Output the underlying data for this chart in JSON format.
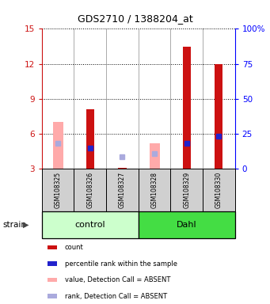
{
  "title": "GDS2710 / 1388204_at",
  "samples": [
    "GSM108325",
    "GSM108326",
    "GSM108327",
    "GSM108328",
    "GSM108329",
    "GSM108330"
  ],
  "groups": [
    "control",
    "control",
    "control",
    "Dahl",
    "Dahl",
    "Dahl"
  ],
  "ylim_left": [
    3,
    15
  ],
  "yticks_left": [
    3,
    6,
    9,
    12,
    15
  ],
  "ylim_right": [
    0,
    100
  ],
  "yticks_right": [
    0,
    25,
    50,
    75,
    100
  ],
  "ytick_labels_right": [
    "0",
    "25",
    "50",
    "75",
    "100%"
  ],
  "red_bars": {
    "GSM108325": null,
    "GSM108326": 8.1,
    "GSM108327": 3.1,
    "GSM108328": null,
    "GSM108329": 13.5,
    "GSM108330": 12.0
  },
  "pink_bars": {
    "GSM108325": 7.0,
    "GSM108326": null,
    "GSM108327": null,
    "GSM108328": 5.2,
    "GSM108329": null,
    "GSM108330": null
  },
  "blue_squares": {
    "GSM108325": null,
    "GSM108326": 4.8,
    "GSM108327": null,
    "GSM108328": null,
    "GSM108329": 5.2,
    "GSM108330": 5.8
  },
  "lightblue_squares": {
    "GSM108325": 5.2,
    "GSM108326": null,
    "GSM108327": 4.0,
    "GSM108328": 4.3,
    "GSM108329": null,
    "GSM108330": null
  },
  "red_color": "#cc1111",
  "pink_color": "#ffaaaa",
  "blue_color": "#2222cc",
  "lightblue_color": "#aaaadd",
  "control_color_light": "#ccffcc",
  "dahl_color": "#44dd44",
  "gray_color": "#d0d0d0",
  "legend_items": [
    {
      "color": "#cc1111",
      "label": "count"
    },
    {
      "color": "#2222cc",
      "label": "percentile rank within the sample"
    },
    {
      "color": "#ffaaaa",
      "label": "value, Detection Call = ABSENT"
    },
    {
      "color": "#aaaadd",
      "label": "rank, Detection Call = ABSENT"
    }
  ]
}
